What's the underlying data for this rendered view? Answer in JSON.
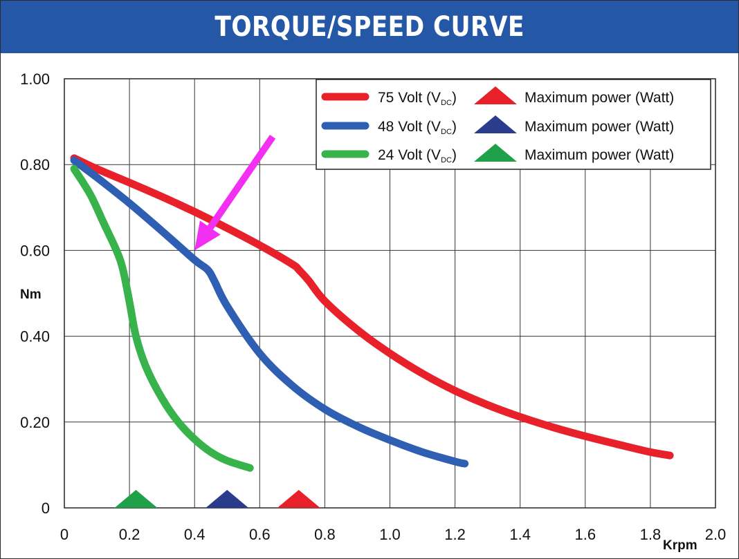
{
  "title": "TORQUE/SPEED CURVE",
  "chart_data": {
    "type": "line",
    "title": "TORQUE/SPEED CURVE",
    "xlabel": "Krpm",
    "ylabel": "Nm",
    "xlim": [
      0,
      2.0
    ],
    "ylim": [
      0,
      1.0
    ],
    "grid": true,
    "legend_position": "top-right",
    "x_ticks": [
      "0",
      "0.2",
      "0.4",
      "0.6",
      "0.8",
      "1.0",
      "1.2",
      "1.4",
      "1.6",
      "1.8",
      "2.0"
    ],
    "x_tick_values": [
      0,
      0.2,
      0.4,
      0.6,
      0.8,
      1.0,
      1.2,
      1.4,
      1.6,
      1.8,
      2.0
    ],
    "y_ticks": [
      "0",
      "0.20",
      "0.40",
      "0.60",
      "0.80",
      "1.00"
    ],
    "y_tick_values": [
      0,
      0.2,
      0.4,
      0.6,
      0.8,
      1.0
    ],
    "series": [
      {
        "name": "75 Volt (V",
        "name_sub": "DC",
        "name_end": ")",
        "color": "#e8202a",
        "x": [
          0.03,
          0.1,
          0.2,
          0.3,
          0.4,
          0.5,
          0.6,
          0.7,
          0.72,
          0.75,
          0.8,
          0.9,
          1.0,
          1.1,
          1.2,
          1.3,
          1.4,
          1.5,
          1.6,
          1.7,
          1.8,
          1.86
        ],
        "y": [
          0.815,
          0.79,
          0.758,
          0.725,
          0.69,
          0.652,
          0.612,
          0.568,
          0.555,
          0.53,
          0.482,
          0.415,
          0.36,
          0.313,
          0.273,
          0.24,
          0.212,
          0.188,
          0.167,
          0.148,
          0.13,
          0.122
        ],
        "max_power_x": 0.72
      },
      {
        "name": "48 Volt (V",
        "name_sub": "DC",
        "name_end": ")",
        "color": "#2f5fb3",
        "x": [
          0.03,
          0.1,
          0.2,
          0.3,
          0.4,
          0.44,
          0.46,
          0.5,
          0.6,
          0.7,
          0.8,
          0.9,
          1.0,
          1.1,
          1.2,
          1.23
        ],
        "y": [
          0.81,
          0.77,
          0.71,
          0.645,
          0.578,
          0.555,
          0.53,
          0.47,
          0.36,
          0.285,
          0.23,
          0.19,
          0.158,
          0.13,
          0.108,
          0.103
        ],
        "max_power_x": 0.5
      },
      {
        "name": "24 Volt (V",
        "name_sub": "DC",
        "name_end": ")",
        "color": "#38b24a",
        "x": [
          0.03,
          0.08,
          0.12,
          0.16,
          0.18,
          0.2,
          0.22,
          0.25,
          0.3,
          0.35,
          0.4,
          0.45,
          0.5,
          0.57
        ],
        "y": [
          0.79,
          0.73,
          0.665,
          0.6,
          0.555,
          0.48,
          0.4,
          0.33,
          0.255,
          0.2,
          0.16,
          0.13,
          0.11,
          0.093
        ],
        "max_power_x": 0.22
      }
    ],
    "max_power_label": "Maximum power (Watt)",
    "max_power_colors": [
      "#e8202a",
      "#2c3c8c",
      "#1fa14a"
    ],
    "annotation": {
      "type": "arrow",
      "color": "#f22ff2",
      "from": [
        0.64,
        0.865
      ],
      "to": [
        0.4,
        0.6
      ]
    }
  }
}
